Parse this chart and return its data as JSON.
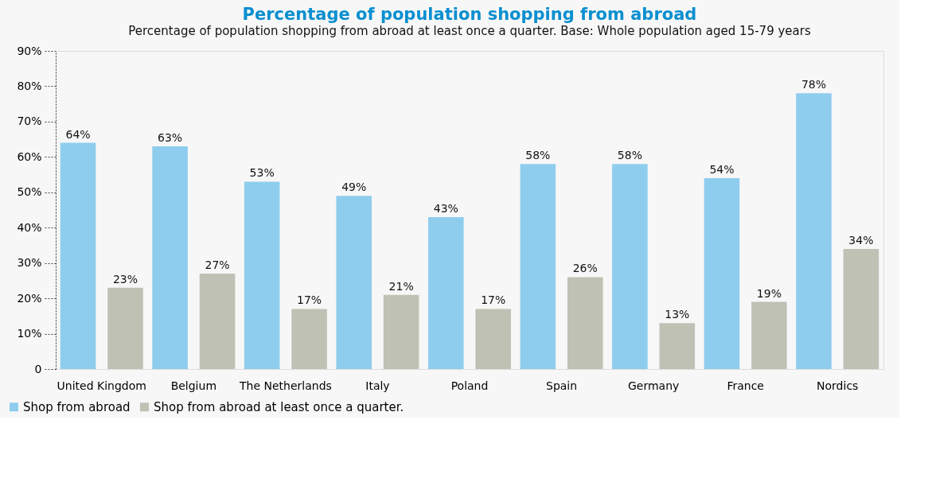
{
  "chart_data": {
    "type": "bar",
    "title": "Percentage of population shopping from abroad",
    "subtitle": "Percentage of population shopping from abroad at least once a quarter. Base: Whole population aged 15-79 years",
    "categories": [
      "United Kingdom",
      "Belgium",
      "The Netherlands",
      "Italy",
      "Poland",
      "Spain",
      "Germany",
      "France",
      "Nordics"
    ],
    "series": [
      {
        "name": "Shop from abroad",
        "color": "#8ecdee",
        "values": [
          64,
          63,
          53,
          49,
          43,
          58,
          58,
          54,
          78
        ],
        "value_labels": [
          "64%",
          "63%",
          "53%",
          "49%",
          "43%",
          "58%",
          "58%",
          "54%",
          "78%"
        ]
      },
      {
        "name": "Shop from abroad at least once a quarter.",
        "color": "#c0c1b5",
        "values": [
          23,
          27,
          17,
          21,
          17,
          26,
          13,
          19,
          34
        ],
        "value_labels": [
          "23%",
          "27%",
          "17%",
          "21%",
          "17%",
          "26%",
          "13%",
          "19%",
          "34%"
        ]
      }
    ],
    "ylim": [
      0,
      90
    ],
    "yticks": [
      0,
      {
        "value": 10,
        "label": "10%"
      },
      {
        "value": 20,
        "label": "20%"
      },
      {
        "value": 30,
        "label": "30%"
      },
      {
        "value": 40,
        "label": "40%"
      },
      {
        "value": 50,
        "label": "50%"
      },
      {
        "value": 60,
        "label": "60%"
      },
      {
        "value": 70,
        "label": "70%"
      },
      {
        "value": 80,
        "label": "80%"
      },
      {
        "value": 90,
        "label": "90%"
      }
    ],
    "grid": false,
    "legend": "bottom left"
  }
}
